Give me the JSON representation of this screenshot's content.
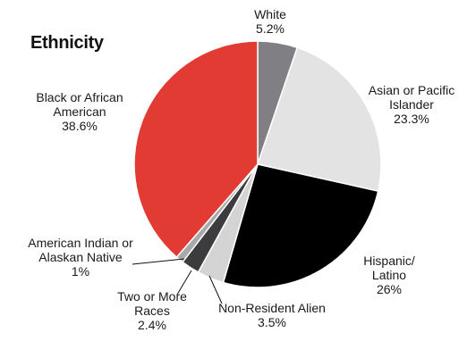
{
  "chart_data": {
    "type": "pie",
    "title": "Ethnicity",
    "slices": [
      {
        "label": [
          "White"
        ],
        "value": 5.2,
        "value_text": "5.2%",
        "color": "#808084"
      },
      {
        "label": [
          "Asian or Pacific",
          "Islander"
        ],
        "value": 23.3,
        "value_text": "23.3%",
        "color": "#e3e3e3"
      },
      {
        "label": [
          "Hispanic/",
          "Latino"
        ],
        "value": 26,
        "value_text": "26%",
        "color": "#000000"
      },
      {
        "label": [
          "Non-Resident Alien"
        ],
        "value": 3.5,
        "value_text": "3.5%",
        "color": "#d4d4d4"
      },
      {
        "label": [
          "Two or More",
          "Races"
        ],
        "value": 2.4,
        "value_text": "2.4%",
        "color": "#3c3c3e"
      },
      {
        "label": [
          "American Indian or",
          "Alaskan Native"
        ],
        "value": 1,
        "value_text": "1%",
        "color": "#a9a9ab"
      },
      {
        "label": [
          "Black or African",
          "American"
        ],
        "value": 38.6,
        "value_text": "38.6%",
        "color": "#e23b33"
      }
    ],
    "start": "12 o'clock",
    "direction": "clockwise",
    "legend": "none"
  }
}
